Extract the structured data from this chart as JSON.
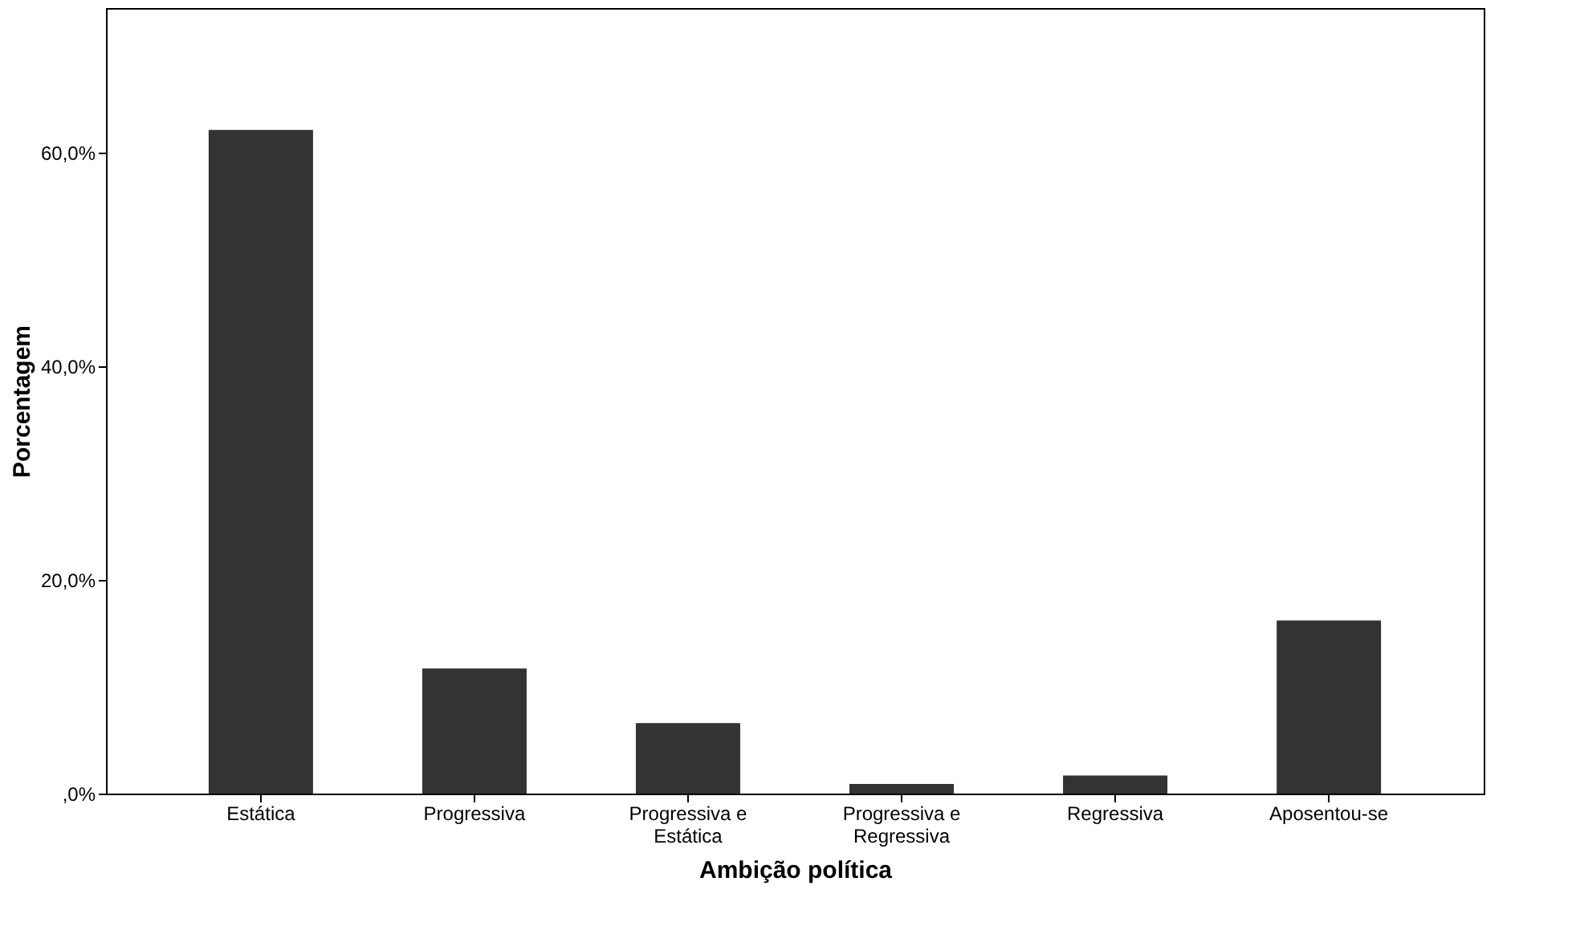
{
  "chart_data": {
    "type": "bar",
    "xlabel": "Ambição política",
    "ylabel": "Porcentagem",
    "categories": [
      "Estática",
      "Progressiva",
      "Progressiva e\nEstática",
      "Progressiva e\nRegressiva",
      "Regressiva",
      "Aposentou-se"
    ],
    "values": [
      62.1,
      11.7,
      6.6,
      0.9,
      1.7,
      16.2
    ],
    "color": "#333333",
    "ylim": [
      0,
      73.5
    ],
    "yticks": [
      {
        "value": 0,
        "label": ",0%"
      },
      {
        "value": 20,
        "label": "20,0%"
      },
      {
        "value": 40,
        "label": "40,0%"
      },
      {
        "value": 60,
        "label": "60,0%"
      }
    ],
    "grid": false
  }
}
